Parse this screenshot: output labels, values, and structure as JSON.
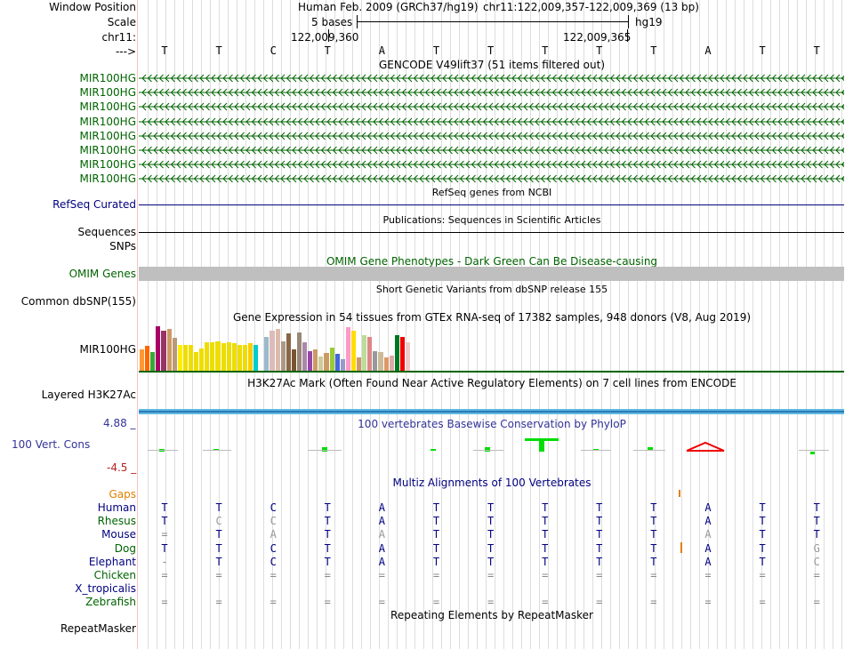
{
  "header": {
    "window_position_label": "Window Position",
    "scale_label": "Scale",
    "chr_label": "chr11:",
    "arrow_label": "--->",
    "assembly": "Human Feb. 2009 (GRCh37/hg19)",
    "position": "chr11:122,009,357-122,009,369 (13 bp)",
    "scale_text": "5 bases",
    "db": "hg19",
    "pos_tick_1": "122,009,360",
    "pos_tick_2": "122,009,365"
  },
  "sequence": [
    "T",
    "T",
    "C",
    "T",
    "A",
    "T",
    "T",
    "T",
    "T",
    "T",
    "A",
    "T",
    "T"
  ],
  "gencode": {
    "title": "GENCODE V49lift37 (51 items filtered out)",
    "genes": [
      "MIR100HG",
      "MIR100HG",
      "MIR100HG",
      "MIR100HG",
      "MIR100HG",
      "MIR100HG",
      "MIR100HG",
      "MIR100HG"
    ]
  },
  "refseq": {
    "title": "RefSeq genes from NCBI",
    "label": "RefSeq Curated"
  },
  "publications": {
    "title": "Publications: Sequences in Scientific Articles",
    "label": "Sequences"
  },
  "snps": {
    "label": "SNPs"
  },
  "omim": {
    "title": "OMIM Gene Phenotypes - Dark Green Can Be Disease-causing",
    "label": "OMIM Genes"
  },
  "dbsnp": {
    "title": "Short Genetic Variants from dbSNP release 155",
    "label": "Common dbSNP(155)"
  },
  "gtex": {
    "title": "Gene Expression in 54 tissues from GTEx RNA-seq of 17382 samples, 948 donors (V8, Aug 2019)",
    "label": "MIR100HG",
    "bars": [
      {
        "v": 0.45,
        "c": "#ff9933"
      },
      {
        "v": 0.52,
        "c": "#ff6600"
      },
      {
        "v": 0.4,
        "c": "#33aa33"
      },
      {
        "v": 0.95,
        "c": "#aa0066"
      },
      {
        "v": 0.85,
        "c": "#993366"
      },
      {
        "v": 0.88,
        "c": "#cc9966"
      },
      {
        "v": 0.7,
        "c": "#bb9977"
      },
      {
        "v": 0.55,
        "c": "#ffee00"
      },
      {
        "v": 0.55,
        "c": "#eedd00"
      },
      {
        "v": 0.55,
        "c": "#eedd00"
      },
      {
        "v": 0.4,
        "c": "#eedd00"
      },
      {
        "v": 0.48,
        "c": "#eedd00"
      },
      {
        "v": 0.6,
        "c": "#eedd00"
      },
      {
        "v": 0.6,
        "c": "#eedd00"
      },
      {
        "v": 0.62,
        "c": "#eedd00"
      },
      {
        "v": 0.58,
        "c": "#eedd00"
      },
      {
        "v": 0.6,
        "c": "#eedd00"
      },
      {
        "v": 0.58,
        "c": "#eedd00"
      },
      {
        "v": 0.55,
        "c": "#eedd00"
      },
      {
        "v": 0.55,
        "c": "#eedd00"
      },
      {
        "v": 0.58,
        "c": "#ffcc00"
      },
      {
        "v": 0.55,
        "c": "#00cccc"
      },
      {
        "v": 0.0,
        "c": "#ffffff"
      },
      {
        "v": 0.72,
        "c": "#99bbcc"
      },
      {
        "v": 0.85,
        "c": "#ddbbbb"
      },
      {
        "v": 0.88,
        "c": "#ddbbaa"
      },
      {
        "v": 0.62,
        "c": "#aa9988"
      },
      {
        "v": 0.8,
        "c": "#886644"
      },
      {
        "v": 0.45,
        "c": "#775533"
      },
      {
        "v": 0.82,
        "c": "#998877"
      },
      {
        "v": 0.6,
        "c": "#aa88aa"
      },
      {
        "v": 0.42,
        "c": "#9944aa"
      },
      {
        "v": 0.45,
        "c": "#cc9966"
      },
      {
        "v": 0.3,
        "c": "#cccc99"
      },
      {
        "v": 0.38,
        "c": "#cc9966"
      },
      {
        "v": 0.5,
        "c": "#99cc33"
      },
      {
        "v": 0.35,
        "c": "#4466dd"
      },
      {
        "v": 0.25,
        "c": "#9999cc"
      },
      {
        "v": 0.92,
        "c": "#ff99cc"
      },
      {
        "v": 0.85,
        "c": "#ffdd00"
      },
      {
        "v": 0.28,
        "c": "#cc9966"
      },
      {
        "v": 0.75,
        "c": "#bbdd99"
      },
      {
        "v": 0.72,
        "c": "#dd8888"
      },
      {
        "v": 0.42,
        "c": "#999999"
      },
      {
        "v": 0.4,
        "c": "#ccbb99"
      },
      {
        "v": 0.28,
        "c": "#dd9966"
      },
      {
        "v": 0.32,
        "c": "#ddaaaa"
      },
      {
        "v": 0.75,
        "c": "#007722"
      },
      {
        "v": 0.72,
        "c": "#ee0000"
      },
      {
        "v": 0.6,
        "c": "#eecccc"
      }
    ]
  },
  "h3k27ac": {
    "title": "H3K27Ac Mark (Often Found Near Active Regulatory Elements) on 7 cell lines from ENCODE",
    "label": "Layered H3K27Ac"
  },
  "phylop": {
    "title": "100 vertebrates Basewise Conservation by PhyloP",
    "label": "100 Vert. Cons",
    "max": "4.88 _",
    "min": "-4.5 _"
  },
  "multiz": {
    "title": "Multiz Alignments of 100 Vertebrates",
    "gaps_label": "Gaps",
    "species": [
      {
        "name": "Human",
        "seq": [
          "T",
          "T",
          "C",
          "T",
          "A",
          "T",
          "T",
          "T",
          "T",
          "T",
          "A",
          "T",
          "T"
        ]
      },
      {
        "name": "Rhesus",
        "seq": [
          "T",
          "C",
          "C",
          "T",
          "A",
          "T",
          "T",
          "T",
          "T",
          "T",
          "A",
          "T",
          "T"
        ]
      },
      {
        "name": "Mouse",
        "seq": [
          "=",
          "T",
          "A",
          "T",
          "A",
          "T",
          "T",
          "T",
          "T",
          "T",
          "A",
          "T",
          "T"
        ]
      },
      {
        "name": "Dog",
        "seq": [
          "T",
          "T",
          "C",
          "T",
          "A",
          "T",
          "T",
          "T",
          "T",
          "T",
          "A",
          "T",
          "G"
        ]
      },
      {
        "name": "Elephant",
        "seq": [
          "-",
          "T",
          "C",
          "T",
          "A",
          "T",
          "T",
          "T",
          "T",
          "T",
          "A",
          "T",
          "C"
        ]
      },
      {
        "name": "Chicken",
        "seq": [
          "=",
          "=",
          "=",
          "=",
          "=",
          "=",
          "=",
          "=",
          "=",
          "=",
          "=",
          "=",
          "="
        ]
      },
      {
        "name": "X_tropicalis",
        "seq": [
          "",
          "",
          "",
          "",
          "",
          "",
          "",
          "",
          "",
          "",
          "",
          "",
          ""
        ]
      },
      {
        "name": "Zebrafish",
        "seq": [
          "=",
          "=",
          "=",
          "=",
          "=",
          "=",
          "=",
          "=",
          "=",
          "=",
          "=",
          "=",
          "="
        ]
      }
    ]
  },
  "repeatmasker": {
    "title": "Repeating Elements by RepeatMasker",
    "label": "RepeatMasker"
  }
}
